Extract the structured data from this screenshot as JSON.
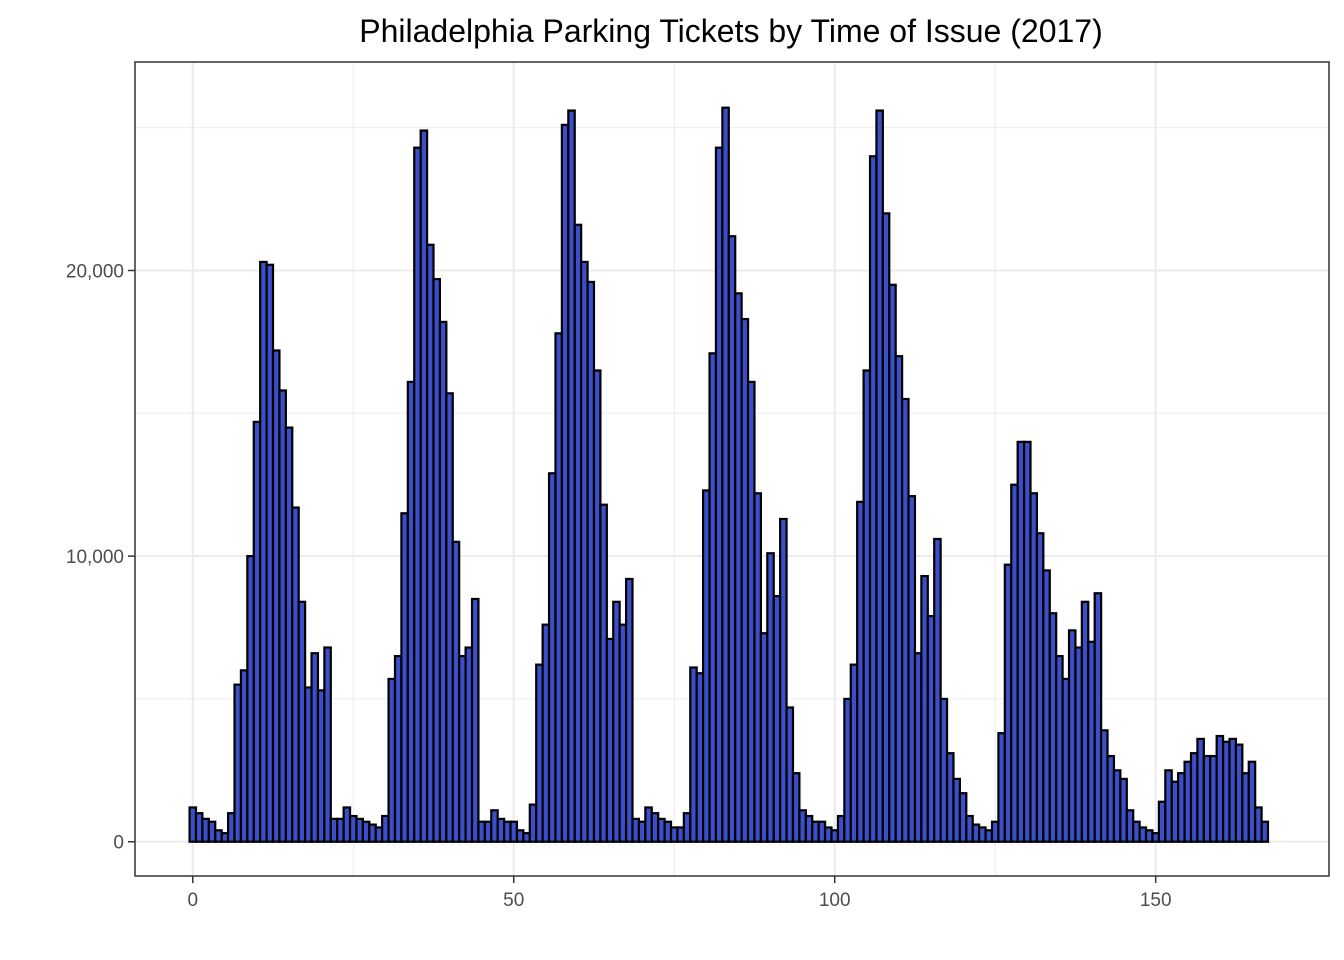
{
  "chart_data": {
    "type": "bar",
    "title": "Philadelphia Parking Tickets by Time of Issue (2017)",
    "xlabel": "",
    "ylabel": "",
    "xlim": [
      -9,
      177
    ],
    "ylim": [
      -1200,
      27300
    ],
    "x_ticks": [
      {
        "value": 0,
        "label": "0"
      },
      {
        "value": 50,
        "label": "50"
      },
      {
        "value": 100,
        "label": "100"
      },
      {
        "value": 150,
        "label": "150"
      }
    ],
    "x_minor_ticks": [
      25,
      75,
      125
    ],
    "y_ticks": [
      {
        "value": 0,
        "label": "0"
      },
      {
        "value": 10000,
        "label": "10,000"
      },
      {
        "value": 20000,
        "label": "20,000"
      }
    ],
    "y_minor_ticks": [
      5000,
      15000,
      25000
    ],
    "grid": true,
    "bar_fill": "#3a4fc9",
    "bar_stroke": "#000000",
    "grid_color": "#ebebeb",
    "panel_border": "#333333",
    "x": [
      0,
      1,
      2,
      3,
      4,
      5,
      6,
      7,
      8,
      9,
      10,
      11,
      12,
      13,
      14,
      15,
      16,
      17,
      18,
      19,
      20,
      21,
      22,
      23,
      24,
      25,
      26,
      27,
      28,
      29,
      30,
      31,
      32,
      33,
      34,
      35,
      36,
      37,
      38,
      39,
      40,
      41,
      42,
      43,
      44,
      45,
      46,
      47,
      48,
      49,
      50,
      51,
      52,
      53,
      54,
      55,
      56,
      57,
      58,
      59,
      60,
      61,
      62,
      63,
      64,
      65,
      66,
      67,
      68,
      69,
      70,
      71,
      72,
      73,
      74,
      75,
      76,
      77,
      78,
      79,
      80,
      81,
      82,
      83,
      84,
      85,
      86,
      87,
      88,
      89,
      90,
      91,
      92,
      93,
      94,
      95,
      96,
      97,
      98,
      99,
      100,
      101,
      102,
      103,
      104,
      105,
      106,
      107,
      108,
      109,
      110,
      111,
      112,
      113,
      114,
      115,
      116,
      117,
      118,
      119,
      120,
      121,
      122,
      123,
      124,
      125,
      126,
      127,
      128,
      129,
      130,
      131,
      132,
      133,
      134,
      135,
      136,
      137,
      138,
      139,
      140,
      141,
      142,
      143,
      144,
      145,
      146,
      147,
      148,
      149,
      150,
      151,
      152,
      153,
      154,
      155,
      156,
      157,
      158,
      159,
      160,
      161,
      162,
      163,
      164,
      165,
      166,
      167
    ],
    "values": [
      1200,
      1000,
      800,
      700,
      400,
      300,
      1000,
      5500,
      6000,
      10000,
      14700,
      20300,
      20200,
      17200,
      15800,
      14500,
      11700,
      8400,
      5400,
      6600,
      5300,
      6800,
      800,
      800,
      1200,
      900,
      800,
      700,
      600,
      500,
      900,
      5700,
      6500,
      11500,
      16100,
      24300,
      24900,
      20900,
      19700,
      18200,
      15700,
      10500,
      6500,
      6800,
      8500,
      700,
      700,
      1100,
      800,
      700,
      700,
      400,
      300,
      1300,
      6200,
      7600,
      12900,
      17800,
      25100,
      25600,
      21600,
      20300,
      19600,
      16500,
      11800,
      7100,
      8400,
      7600,
      9200,
      800,
      700,
      1200,
      1000,
      800,
      700,
      500,
      500,
      1000,
      6100,
      5900,
      12300,
      17100,
      24300,
      25700,
      21200,
      19200,
      18300,
      16100,
      12200,
      7300,
      10100,
      8600,
      11300,
      4700,
      2400,
      1100,
      900,
      700,
      700,
      500,
      400,
      900,
      5000,
      6200,
      11900,
      16500,
      24000,
      25600,
      22000,
      19500,
      17000,
      15500,
      12100,
      6600,
      9300,
      7900,
      10600,
      5000,
      3100,
      2200,
      1700,
      900,
      600,
      500,
      400,
      700,
      3800,
      9700,
      12500,
      14000,
      14000,
      12200,
      10800,
      9500,
      8000,
      6500,
      5700,
      7400,
      6800,
      8400,
      7000,
      8700,
      3900,
      3000,
      2500,
      2200,
      1100,
      700,
      500,
      400,
      300,
      1400,
      2500,
      2100,
      2400,
      2800,
      3100,
      3600,
      3000,
      3000,
      3700,
      3500,
      3600,
      3400,
      2400,
      2800,
      1200,
      700
    ]
  }
}
